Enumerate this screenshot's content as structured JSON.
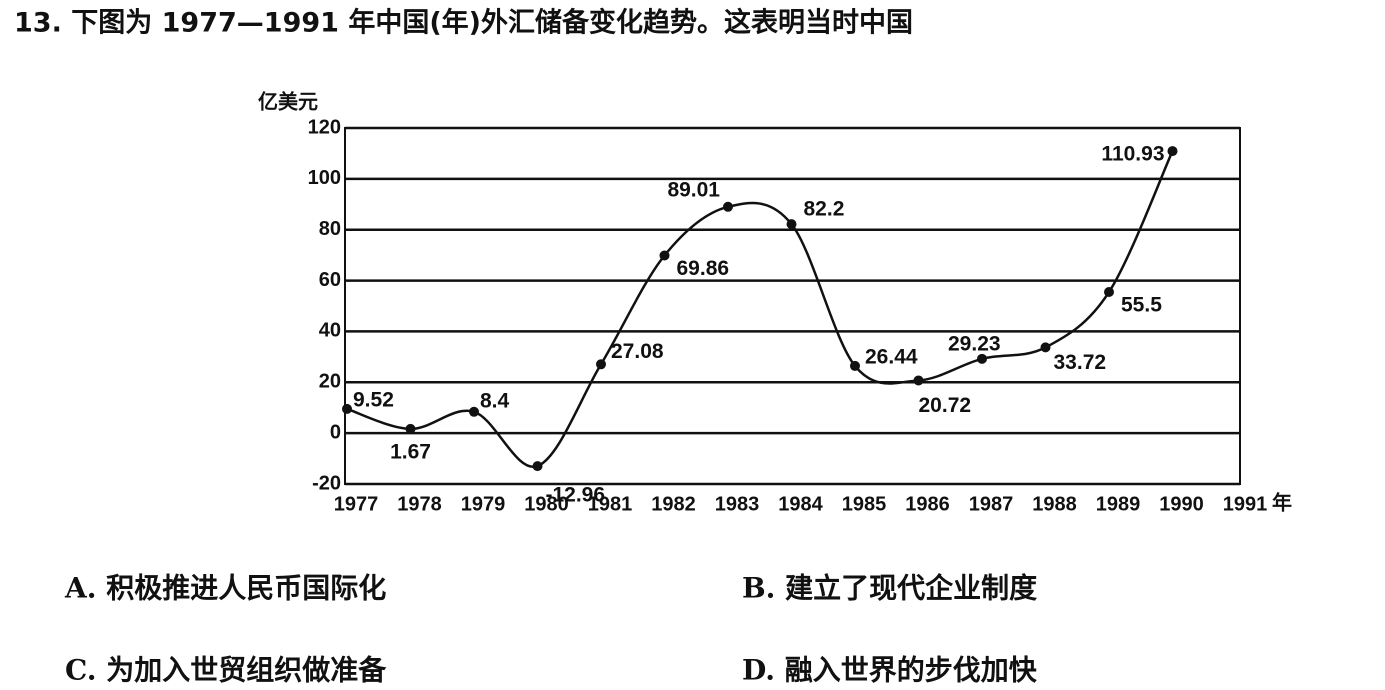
{
  "question": "13. 下图为 1977—1991 年中国(年)外汇储备变化趋势。这表明当时中国",
  "chart_data": {
    "type": "line",
    "y_label": "亿美元",
    "x_label": "年",
    "categories": [
      "1977",
      "1978",
      "1979",
      "1980",
      "1981",
      "1982",
      "1983",
      "1984",
      "1985",
      "1986",
      "1987",
      "1988",
      "1989",
      "1990",
      "1991"
    ],
    "values": [
      9.52,
      1.67,
      8.4,
      -12.96,
      27.08,
      69.86,
      89.01,
      82.2,
      26.44,
      20.72,
      29.23,
      33.72,
      55.5,
      110.93,
      null
    ],
    "color": "#111111",
    "ylim": [
      -20,
      120
    ],
    "yticks": [
      -20,
      0,
      20,
      40,
      60,
      80,
      100,
      120
    ],
    "grid": true
  },
  "options": [
    "A. 积极推进人民币国际化",
    "B. 建立了现代企业制度",
    "C. 为加入世贸组织做准备",
    "D. 融入世界的步伐加快"
  ]
}
